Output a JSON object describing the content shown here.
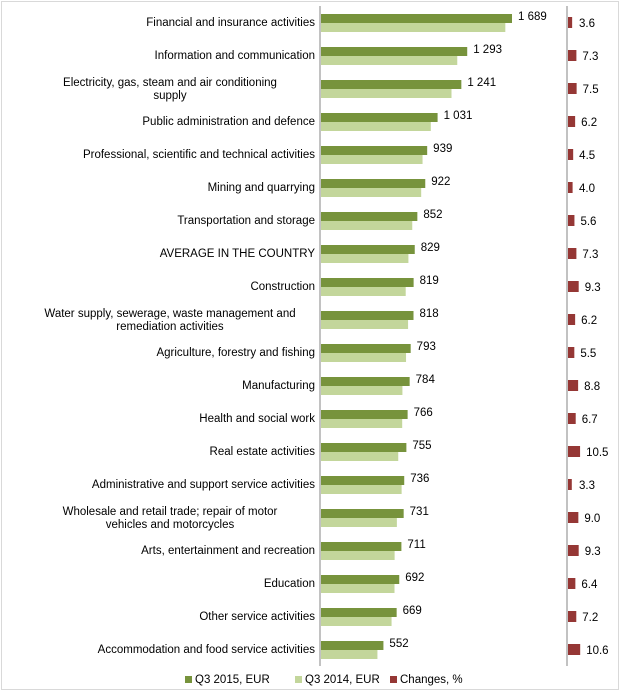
{
  "chart_data": {
    "type": "bar",
    "orientation": "horizontal",
    "categories": [
      "Financial and insurance activities",
      "Information and communication",
      "Electricity, gas, steam and air conditioning supply",
      "Public administration and defence",
      "Professional, scientific and technical activities",
      "Mining and quarrying",
      "Transportation and storage",
      "AVERAGE IN THE COUNTRY",
      "Construction",
      "Water supply, sewerage, waste management and remediation activities",
      "Agriculture, forestry and fishing",
      "Manufacturing",
      "Health and social work",
      "Real estate activities",
      "Administrative and support service activities",
      "Wholesale and retail trade; repair of motor vehicles and motorcycles",
      "Arts, entertainment and recreation",
      "Education",
      "Other service activities",
      "Accommodation and food service activities"
    ],
    "series": [
      {
        "name": "Q3 2015, EUR",
        "color": "#77933c",
        "values": [
          1689,
          1293,
          1241,
          1031,
          939,
          922,
          852,
          829,
          819,
          818,
          793,
          784,
          766,
          755,
          736,
          731,
          711,
          692,
          669,
          552
        ],
        "labels": [
          "1 689",
          "1 293",
          "1 241",
          "1 031",
          "939",
          "922",
          "852",
          "829",
          "819",
          "818",
          "793",
          "784",
          "766",
          "755",
          "736",
          "731",
          "711",
          "692",
          "669",
          "552"
        ]
      },
      {
        "name": "Q3 2014, EUR",
        "color": "#c3d69b",
        "values": [
          1630,
          1205,
          1154,
          971,
          898,
          886,
          807,
          773,
          749,
          770,
          752,
          720,
          718,
          683,
          713,
          671,
          651,
          650,
          624,
          499
        ]
      },
      {
        "name": "Changes, %",
        "color": "#953735",
        "values": [
          3.6,
          7.3,
          7.5,
          6.2,
          4.5,
          4.0,
          5.6,
          7.3,
          9.3,
          6.2,
          5.5,
          8.8,
          6.7,
          10.5,
          3.3,
          9.0,
          9.3,
          6.4,
          7.2,
          10.6
        ],
        "labels": [
          "3.6",
          "7.3",
          "7.5",
          "6.2",
          "4.5",
          "4.0",
          "5.6",
          "7.3",
          "9.3",
          "6.2",
          "5.5",
          "8.8",
          "6.7",
          "10.5",
          "3.3",
          "9.0",
          "9.3",
          "6.4",
          "7.2",
          "10.6"
        ]
      }
    ],
    "legend": {
      "position": "bottom",
      "items": [
        {
          "label": "Q3 2015, EUR",
          "color": "#77933c"
        },
        {
          "label": "Q3 2014, EUR",
          "color": "#c3d69b"
        },
        {
          "label": "Changes, %",
          "color": "#953735"
        }
      ]
    },
    "grid": false
  }
}
